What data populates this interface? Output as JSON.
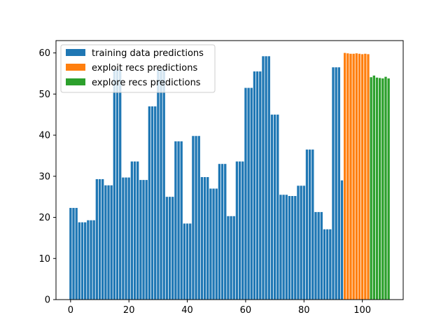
{
  "chart_data": {
    "type": "bar",
    "xlim": [
      -5,
      114
    ],
    "ylim": [
      0,
      63
    ],
    "xticks": [
      0,
      20,
      40,
      60,
      80,
      100
    ],
    "yticks": [
      0,
      10,
      20,
      30,
      40,
      50,
      60
    ],
    "grid": false,
    "legend": "top-left",
    "series": [
      {
        "name": "training data predictions",
        "color": "#1f77b4",
        "x": [
          0,
          1,
          2,
          3,
          4,
          5,
          6,
          7,
          8,
          9,
          10,
          11,
          12,
          13,
          14,
          15,
          16,
          17,
          18,
          19,
          20,
          21,
          22,
          23,
          24,
          25,
          26,
          27,
          28,
          29,
          30,
          31,
          32,
          33,
          34,
          35,
          36,
          37,
          38,
          39,
          40,
          41,
          42,
          43,
          44,
          45,
          46,
          47,
          48,
          49,
          50,
          51,
          52,
          53,
          54,
          55,
          56,
          57,
          58,
          59,
          60,
          61,
          62,
          63,
          64,
          65,
          66,
          67,
          68,
          69,
          70,
          71,
          72,
          73,
          74,
          75,
          76,
          77,
          78,
          79,
          80,
          81,
          82,
          83,
          84,
          85,
          86,
          87,
          88,
          89,
          90,
          91,
          92,
          93
        ],
        "values": [
          22.3,
          22.3,
          22.3,
          18.8,
          18.8,
          18.8,
          19.3,
          19.3,
          19.3,
          29.3,
          29.3,
          29.3,
          27.8,
          27.8,
          27.8,
          56.0,
          56.0,
          56.0,
          29.7,
          29.7,
          29.7,
          33.6,
          33.6,
          33.6,
          29.1,
          29.1,
          29.1,
          47.0,
          47.0,
          47.0,
          56.0,
          56.0,
          56.0,
          25.0,
          25.0,
          25.0,
          38.5,
          38.5,
          38.5,
          18.5,
          18.5,
          18.5,
          39.8,
          39.8,
          39.8,
          29.8,
          29.8,
          29.8,
          27.0,
          27.0,
          27.0,
          33.0,
          33.0,
          33.0,
          20.3,
          20.3,
          20.3,
          33.6,
          33.6,
          33.6,
          51.5,
          51.5,
          51.5,
          55.5,
          55.5,
          55.5,
          59.2,
          59.2,
          59.2,
          45.0,
          45.0,
          45.0,
          25.5,
          25.5,
          25.5,
          25.2,
          25.2,
          25.2,
          27.7,
          27.7,
          27.7,
          36.5,
          36.5,
          36.5,
          21.3,
          21.3,
          21.3,
          17.1,
          17.1,
          17.1,
          56.5,
          56.5,
          56.5,
          29.0
        ]
      },
      {
        "name": "exploit recs predictions",
        "color": "#ff7f0e",
        "x": [
          94,
          95,
          96,
          97,
          98,
          99,
          100,
          101,
          102
        ],
        "values": [
          60.0,
          59.9,
          59.8,
          59.8,
          59.9,
          59.8,
          59.7,
          59.8,
          59.7
        ]
      },
      {
        "name": "explore recs predictions",
        "color": "#2ca02c",
        "x": [
          103,
          104,
          105,
          106,
          107,
          108,
          109
        ],
        "values": [
          54.1,
          54.5,
          54.0,
          53.9,
          53.8,
          54.2,
          53.8
        ]
      }
    ]
  }
}
